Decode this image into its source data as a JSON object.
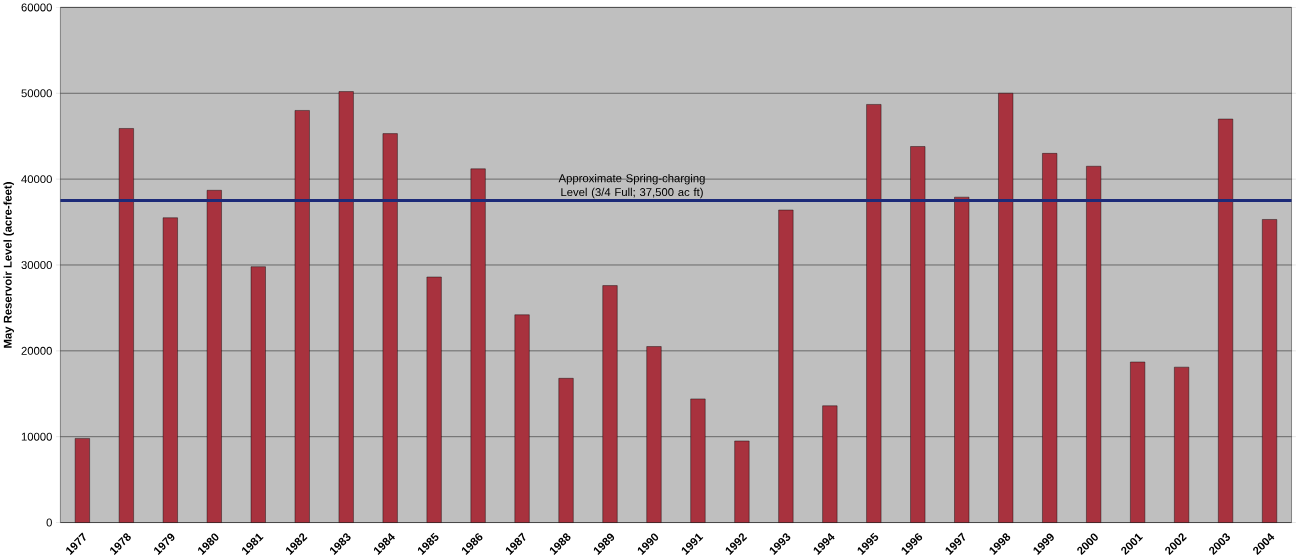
{
  "chart_data": {
    "type": "bar",
    "ylabel": "May Reservoir Level (acre-feet)",
    "categories": [
      "1977",
      "1978",
      "1979",
      "1980",
      "1981",
      "1982",
      "1983",
      "1984",
      "1985",
      "1986",
      "1987",
      "1988",
      "1989",
      "1990",
      "1991",
      "1992",
      "1993",
      "1994",
      "1995",
      "1996",
      "1997",
      "1998",
      "1999",
      "2000",
      "2001",
      "2002",
      "2003",
      "2004"
    ],
    "values": [
      9800,
      45900,
      35500,
      38700,
      29800,
      48000,
      50200,
      45300,
      28600,
      41200,
      24200,
      16800,
      27600,
      20500,
      14400,
      9500,
      36400,
      13600,
      48700,
      43800,
      37900,
      50000,
      43000,
      41500,
      18700,
      18100,
      47000,
      35300
    ],
    "color": "#a8323e",
    "ylim": [
      0,
      60000
    ],
    "yticks": [
      0,
      10000,
      20000,
      30000,
      40000,
      50000,
      60000
    ],
    "grid": "y",
    "ref_lines": [
      {
        "axis": "y",
        "value": 37500,
        "label": "Approximate Spring-charging Level (3/4 Full; 37,500 ac ft)",
        "color": "#1c2a78"
      }
    ]
  }
}
